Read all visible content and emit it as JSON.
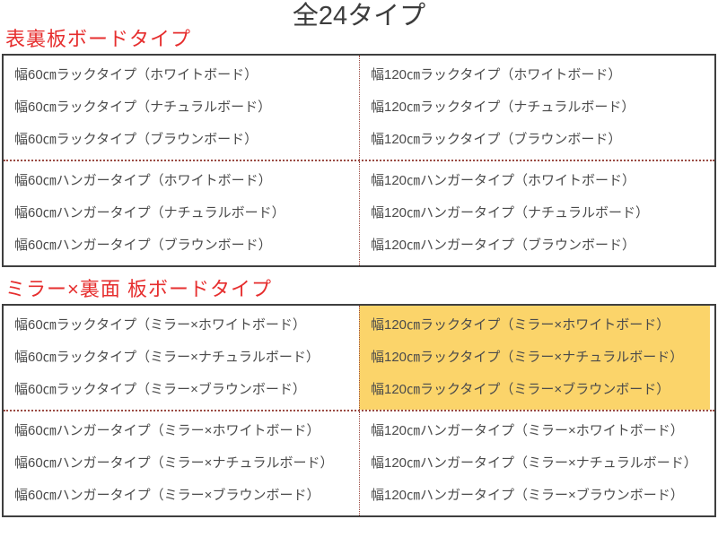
{
  "page": {
    "title": "全24タイプ"
  },
  "sections": [
    {
      "heading": "表裏板ボードタイプ",
      "blocks": [
        {
          "left": [
            "幅60㎝ラックタイプ（ホワイトボード）",
            "幅60㎝ラックタイプ（ナチュラルボード）",
            "幅60㎝ラックタイプ（ブラウンボード）"
          ],
          "right": [
            "幅120㎝ラックタイプ（ホワイトボード）",
            "幅120㎝ラックタイプ（ナチュラルボード）",
            "幅120㎝ラックタイプ（ブラウンボード）"
          ]
        },
        {
          "left": [
            "幅60㎝ハンガータイプ（ホワイトボード）",
            "幅60㎝ハンガータイプ（ナチュラルボード）",
            "幅60㎝ハンガータイプ（ブラウンボード）"
          ],
          "right": [
            "幅120㎝ハンガータイプ（ホワイトボード）",
            "幅120㎝ハンガータイプ（ナチュラルボード）",
            "幅120㎝ハンガータイプ（ブラウンボード）"
          ]
        }
      ]
    },
    {
      "heading": "ミラー×裏面 板ボードタイプ",
      "blocks": [
        {
          "left": [
            "幅60㎝ラックタイプ（ミラー×ホワイトボード）",
            "幅60㎝ラックタイプ（ミラー×ナチュラルボード）",
            "幅60㎝ラックタイプ（ミラー×ブラウンボード）"
          ],
          "right": [
            "幅120㎝ラックタイプ（ミラー×ホワイトボード）",
            "幅120㎝ラックタイプ（ミラー×ナチュラルボード）",
            "幅120㎝ラックタイプ（ミラー×ブラウンボード）"
          ],
          "right_highlighted": true
        },
        {
          "left": [
            "幅60㎝ハンガータイプ（ミラー×ホワイトボード）",
            "幅60㎝ハンガータイプ（ミラー×ナチュラルボード）",
            "幅60㎝ハンガータイプ（ミラー×ブラウンボード）"
          ],
          "right": [
            "幅120㎝ハンガータイプ（ミラー×ホワイトボード）",
            "幅120㎝ハンガータイプ（ミラー×ナチュラルボード）",
            "幅120㎝ハンガータイプ（ミラー×ブラウンボード）"
          ]
        }
      ]
    }
  ],
  "colors": {
    "title_text": "#3c3c3c",
    "heading_red": "#e62e2e",
    "item_text": "#4b4b4b",
    "table_border": "#3f3f3f",
    "divider_red": "#9a4a42",
    "highlight_yellow": "#fbd46a"
  }
}
